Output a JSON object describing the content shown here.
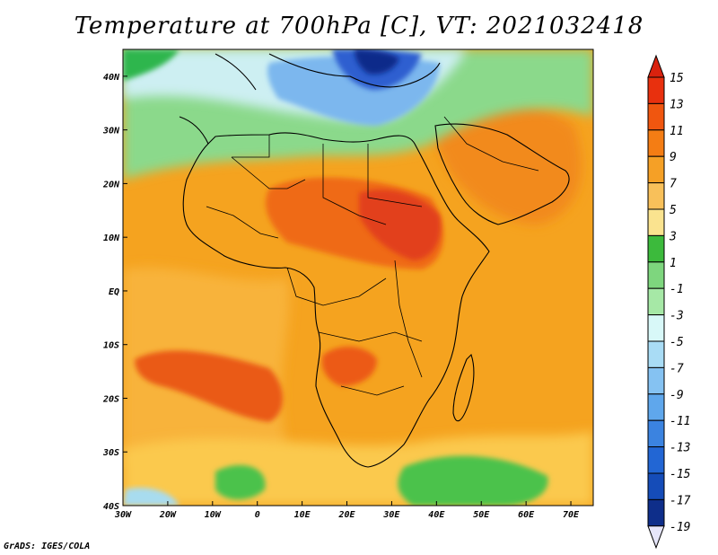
{
  "title": "Temperature at 700hPa [C], VT: 2021032418",
  "credit": "GrADS: IGES/COLA",
  "map": {
    "lon_range": [
      -30,
      75
    ],
    "lat_range": [
      -40,
      45
    ],
    "x_ticks": [
      "30W",
      "20W",
      "10W",
      "0",
      "10E",
      "20E",
      "30E",
      "40E",
      "50E",
      "60E",
      "70E"
    ],
    "y_ticks": [
      "40N",
      "30N",
      "20N",
      "10N",
      "EQ",
      "10S",
      "20S",
      "30S",
      "40S"
    ],
    "background_color": "#f5a623"
  },
  "colorbar": {
    "labels": [
      "15",
      "13",
      "11",
      "9",
      "7",
      "5",
      "3",
      "1",
      "-1",
      "-3",
      "-5",
      "-7",
      "-9",
      "-11",
      "-13",
      "-15",
      "-17",
      "-19"
    ],
    "colors": [
      "#e8300e",
      "#f0560f",
      "#f47d14",
      "#f5a026",
      "#f8c05a",
      "#fae38f",
      "#3cba3c",
      "#7ed67e",
      "#a6e8a6",
      "#d8f8f8",
      "#a9dcf5",
      "#85c2f2",
      "#5fa7ec",
      "#3b83e0",
      "#2266d4",
      "#154cb8",
      "#0e2e8a",
      "#f0f0ff"
    ],
    "top_triangle_color": "#d9220e",
    "bottom_triangle_color": "#e6e6fa"
  }
}
